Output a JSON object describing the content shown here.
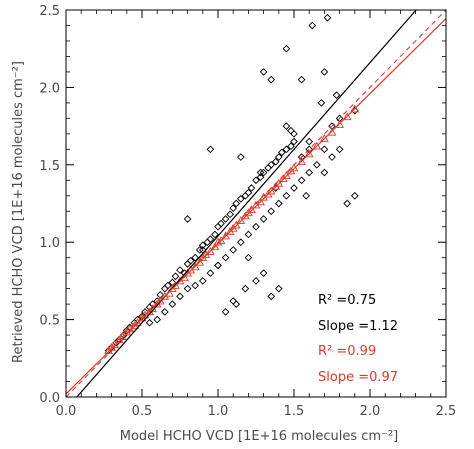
{
  "chart_data": {
    "type": "scatter",
    "xlabel": "Model HCHO VCD [1E+16 molecules cm⁻²]",
    "ylabel": "Retrieved HCHO VCD [1E+16 molecules cm⁻²]",
    "xlim": [
      0.0,
      2.5
    ],
    "ylim": [
      0.0,
      2.5
    ],
    "x_ticks": [
      "0.0",
      "0.5",
      "1.0",
      "1.5",
      "2.0",
      "2.5"
    ],
    "y_ticks": [
      "0.0",
      "0.5",
      "1.0",
      "1.5",
      "2.0",
      "2.5"
    ],
    "grid": false,
    "colors": {
      "black": "#000000",
      "red": "#e0392b"
    },
    "annotations": [
      {
        "text": "R² =0.75",
        "color": "#000000"
      },
      {
        "text": "Slope =1.12",
        "color": "#000000"
      },
      {
        "text": "R² =0.99",
        "color": "#e0392b"
      },
      {
        "text": "Slope =0.97",
        "color": "#e0392b"
      }
    ],
    "series": [
      {
        "marker": "diamond",
        "color": "#000000",
        "fit_slope": 1.12,
        "fit_intercept": -0.08,
        "x": [
          0.28,
          0.3,
          0.33,
          0.35,
          0.38,
          0.4,
          0.42,
          0.45,
          0.47,
          0.5,
          0.52,
          0.55,
          0.57,
          0.6,
          0.62,
          0.65,
          0.67,
          0.7,
          0.72,
          0.75,
          0.78,
          0.8,
          0.82,
          0.85,
          0.88,
          0.9,
          0.93,
          0.95,
          0.98,
          1.0,
          1.02,
          1.05,
          1.08,
          1.1,
          1.12,
          1.15,
          1.18,
          1.2,
          1.22,
          1.25,
          1.28,
          1.3,
          1.33,
          1.35,
          1.38,
          1.4,
          1.42,
          1.45,
          1.48,
          1.5,
          1.55,
          1.6,
          1.65,
          1.7,
          1.75,
          1.8,
          1.85,
          1.9,
          0.55,
          0.6,
          0.65,
          0.7,
          0.75,
          0.8,
          0.85,
          0.9,
          0.95,
          1.0,
          1.05,
          1.1,
          1.15,
          1.2,
          1.25,
          1.3,
          1.35,
          1.4,
          1.45,
          1.5,
          1.55,
          1.6,
          1.05,
          1.12,
          1.18,
          1.25,
          1.3,
          1.35,
          1.4,
          1.45,
          1.5,
          1.6,
          1.7,
          1.75,
          1.8,
          1.9,
          0.8,
          0.9,
          1.0,
          1.1,
          1.2,
          1.3,
          1.35,
          1.45,
          1.55,
          1.62,
          1.7,
          1.72,
          1.78,
          0.95,
          1.15,
          1.28,
          1.38,
          1.48,
          1.58,
          1.68
        ],
        "y": [
          0.3,
          0.32,
          0.35,
          0.37,
          0.4,
          0.43,
          0.45,
          0.48,
          0.5,
          0.52,
          0.55,
          0.58,
          0.6,
          0.62,
          0.66,
          0.7,
          0.72,
          0.74,
          0.78,
          0.82,
          0.8,
          0.86,
          0.88,
          0.9,
          0.95,
          0.98,
          1.0,
          1.02,
          1.05,
          1.1,
          1.12,
          1.15,
          1.18,
          1.22,
          1.25,
          1.28,
          1.3,
          1.32,
          1.35,
          1.4,
          1.42,
          1.45,
          1.48,
          1.5,
          1.52,
          1.55,
          1.58,
          1.6,
          1.62,
          1.65,
          1.55,
          1.6,
          1.5,
          1.45,
          1.55,
          1.6,
          1.25,
          1.3,
          0.48,
          0.5,
          0.55,
          0.6,
          0.65,
          0.7,
          0.72,
          0.75,
          0.8,
          0.85,
          0.9,
          0.95,
          1.0,
          1.05,
          1.1,
          1.15,
          1.2,
          1.25,
          1.3,
          1.35,
          1.4,
          1.45,
          0.55,
          0.6,
          0.7,
          0.75,
          0.8,
          0.65,
          0.7,
          1.75,
          1.7,
          1.65,
          1.6,
          1.75,
          1.8,
          1.85,
          1.15,
          0.95,
          0.85,
          0.62,
          0.9,
          2.1,
          2.05,
          2.25,
          2.05,
          2.4,
          2.1,
          2.45,
          1.95,
          1.6,
          1.55,
          1.45,
          1.35,
          1.72,
          1.3,
          1.9
        ]
      },
      {
        "marker": "triangle",
        "color": "#e0392b",
        "fit_slope": 0.97,
        "fit_intercept": 0.02,
        "x": [
          0.28,
          0.3,
          0.32,
          0.35,
          0.37,
          0.4,
          0.42,
          0.45,
          0.47,
          0.5,
          0.52,
          0.55,
          0.57,
          0.6,
          0.62,
          0.65,
          0.68,
          0.7,
          0.72,
          0.75,
          0.78,
          0.8,
          0.82,
          0.85,
          0.88,
          0.9,
          0.92,
          0.95,
          0.98,
          1.0,
          1.02,
          1.05,
          1.08,
          1.1,
          1.12,
          1.15,
          1.18,
          1.2,
          1.22,
          1.25,
          1.28,
          1.3,
          1.33,
          1.35,
          1.38,
          1.4,
          1.43,
          1.45,
          1.48,
          1.5,
          1.55,
          1.6,
          1.65,
          1.7,
          1.75,
          1.8,
          1.85,
          1.9
        ],
        "y": [
          0.3,
          0.32,
          0.34,
          0.37,
          0.39,
          0.42,
          0.44,
          0.46,
          0.48,
          0.51,
          0.53,
          0.55,
          0.57,
          0.6,
          0.62,
          0.65,
          0.67,
          0.7,
          0.72,
          0.75,
          0.77,
          0.8,
          0.82,
          0.84,
          0.87,
          0.9,
          0.92,
          0.94,
          0.97,
          1.0,
          1.01,
          1.04,
          1.07,
          1.09,
          1.11,
          1.14,
          1.17,
          1.19,
          1.21,
          1.24,
          1.26,
          1.29,
          1.31,
          1.33,
          1.36,
          1.38,
          1.41,
          1.43,
          1.46,
          1.48,
          1.52,
          1.57,
          1.62,
          1.67,
          1.71,
          1.76,
          1.81,
          1.86
        ]
      }
    ]
  }
}
